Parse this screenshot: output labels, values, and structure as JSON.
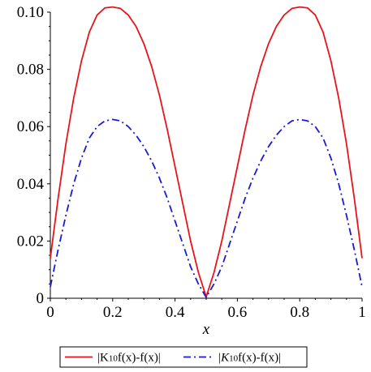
{
  "chart_data": {
    "type": "line",
    "title": "",
    "xlabel": "x",
    "ylabel": "",
    "xlim": [
      0,
      1
    ],
    "ylim": [
      0,
      0.1
    ],
    "xticks": [
      0,
      0.2,
      0.4,
      0.6,
      0.8,
      1
    ],
    "xtick_labels": [
      "0",
      "0.2",
      "0.4",
      "0.6",
      "0.8",
      "1"
    ],
    "yticks": [
      0,
      0.02,
      0.04,
      0.06,
      0.08,
      0.1
    ],
    "ytick_labels": [
      "0",
      "0.02",
      "0.04",
      "0.06",
      "0.08",
      "0.10"
    ],
    "grid": false,
    "legend_position": "bottom",
    "series": [
      {
        "name": "|K10f(x)-f(x)|",
        "label_parts": {
          "pre": "|K",
          "sub": "10",
          "post": "f(x)-f(x)|"
        },
        "color": "#e8141c",
        "dash": "solid",
        "x": [
          0,
          0.025,
          0.05,
          0.075,
          0.1,
          0.125,
          0.15,
          0.175,
          0.2,
          0.225,
          0.25,
          0.275,
          0.3,
          0.325,
          0.35,
          0.375,
          0.4,
          0.425,
          0.45,
          0.475,
          0.5,
          0.525,
          0.55,
          0.575,
          0.6,
          0.625,
          0.65,
          0.675,
          0.7,
          0.725,
          0.75,
          0.775,
          0.8,
          0.825,
          0.85,
          0.875,
          0.9,
          0.925,
          0.95,
          0.975,
          1
        ],
        "y": [
          0.014,
          0.035,
          0.054,
          0.07,
          0.083,
          0.093,
          0.099,
          0.1015,
          0.1018,
          0.1013,
          0.099,
          0.095,
          0.089,
          0.081,
          0.071,
          0.059,
          0.046,
          0.033,
          0.02,
          0.009,
          0.0005,
          0.009,
          0.02,
          0.033,
          0.046,
          0.059,
          0.071,
          0.081,
          0.089,
          0.095,
          0.099,
          0.1013,
          0.1018,
          0.1015,
          0.099,
          0.093,
          0.083,
          0.07,
          0.054,
          0.035,
          0.014
        ]
      },
      {
        "name": "|K10f(x)-f(x)|",
        "label_parts": {
          "pre": "|K",
          "sub": "10",
          "post": "f(x)-f(x)|"
        },
        "color": "#1a1ad6",
        "dash": "dashdot",
        "x": [
          0,
          0.025,
          0.05,
          0.075,
          0.1,
          0.125,
          0.15,
          0.175,
          0.2,
          0.225,
          0.25,
          0.275,
          0.3,
          0.325,
          0.35,
          0.375,
          0.4,
          0.425,
          0.45,
          0.475,
          0.5,
          0.525,
          0.55,
          0.575,
          0.6,
          0.625,
          0.65,
          0.675,
          0.7,
          0.725,
          0.75,
          0.775,
          0.8,
          0.825,
          0.85,
          0.875,
          0.9,
          0.925,
          0.95,
          0.975,
          1
        ],
        "y": [
          0.004,
          0.017,
          0.029,
          0.04,
          0.049,
          0.056,
          0.06,
          0.062,
          0.0625,
          0.062,
          0.06,
          0.057,
          0.053,
          0.048,
          0.042,
          0.035,
          0.027,
          0.019,
          0.011,
          0.005,
          0.0003,
          0.005,
          0.011,
          0.019,
          0.027,
          0.035,
          0.042,
          0.048,
          0.053,
          0.057,
          0.06,
          0.062,
          0.0625,
          0.062,
          0.06,
          0.056,
          0.049,
          0.04,
          0.029,
          0.017,
          0.004
        ]
      }
    ]
  }
}
